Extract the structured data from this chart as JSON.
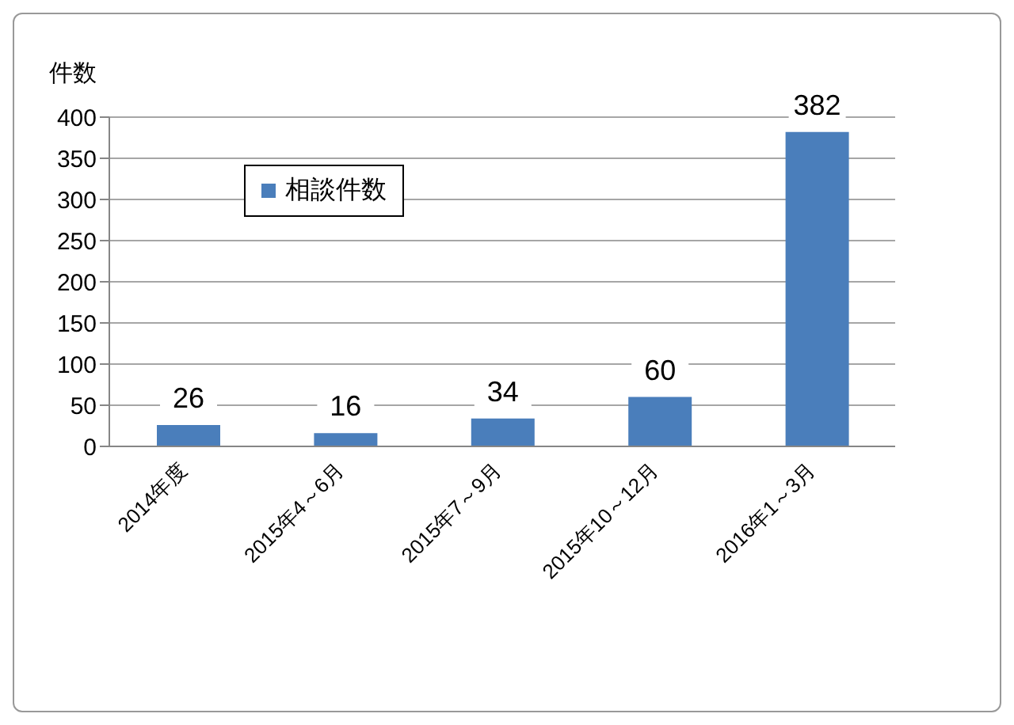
{
  "chart_data": {
    "type": "bar",
    "ylabel": "件数",
    "categories": [
      "2014年度",
      "2015年4～6月",
      "2015年7～9月",
      "2015年10～12月",
      "2016年1～3月"
    ],
    "series": [
      {
        "name": "相談件数",
        "color": "#4a7ebb",
        "values": [
          26,
          16,
          34,
          60,
          382
        ]
      }
    ],
    "ylim": [
      0,
      400
    ],
    "yticks": [
      0,
      50,
      100,
      150,
      200,
      250,
      300,
      350,
      400
    ],
    "grid": "y",
    "legend": "top left",
    "data_labels": true
  }
}
